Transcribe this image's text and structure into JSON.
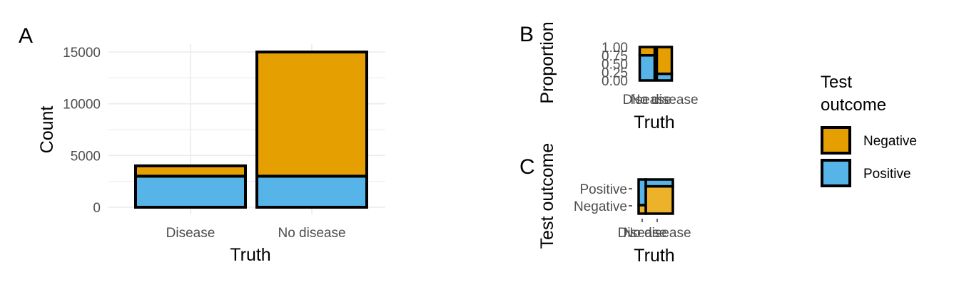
{
  "colors": {
    "negative": "#E69F00",
    "positive": "#56B4E9",
    "mosaic_negative": "#ECB22A",
    "outline": "#000000",
    "grid": "#ebebeb"
  },
  "legend": {
    "title_line1": "Test",
    "title_line2": "outcome",
    "items": [
      {
        "label": "Negative",
        "color": "#E69F00"
      },
      {
        "label": "Positive",
        "color": "#56B4E9"
      }
    ]
  },
  "chart_data": [
    {
      "panel": "A",
      "type": "bar",
      "stacked": true,
      "xlabel": "Truth",
      "ylabel": "Count",
      "categories": [
        "Disease",
        "No disease"
      ],
      "series": [
        {
          "name": "Positive",
          "values": [
            3000,
            3000
          ]
        },
        {
          "name": "Negative",
          "values": [
            1000,
            12000
          ]
        }
      ],
      "ylim": [
        0,
        15000
      ],
      "yticks": [
        "0",
        "5000",
        "10000",
        "15000"
      ],
      "grid": true
    },
    {
      "panel": "B",
      "type": "bar",
      "stacked": true,
      "position": "fill",
      "xlabel": "Truth",
      "ylabel": "Proportion",
      "categories": [
        "Disease",
        "No disease"
      ],
      "series": [
        {
          "name": "Positive",
          "values": [
            0.75,
            0.2
          ]
        },
        {
          "name": "Negative",
          "values": [
            0.25,
            0.8
          ]
        }
      ],
      "ylim": [
        0,
        1
      ],
      "yticks": [
        "0.00",
        "0.25",
        "0.50",
        "0.75",
        "1.00"
      ]
    },
    {
      "panel": "C",
      "type": "mosaic",
      "xlabel": "Truth",
      "ylabel": "Test outcome",
      "categories": [
        "Disease",
        "No disease"
      ],
      "category_widths": [
        0.21,
        0.79
      ],
      "yticks": [
        "Negative",
        "Positive"
      ],
      "series": [
        {
          "name": "Negative",
          "values": [
            0.25,
            0.8
          ]
        },
        {
          "name": "Positive",
          "values": [
            0.75,
            0.2
          ]
        }
      ]
    }
  ]
}
